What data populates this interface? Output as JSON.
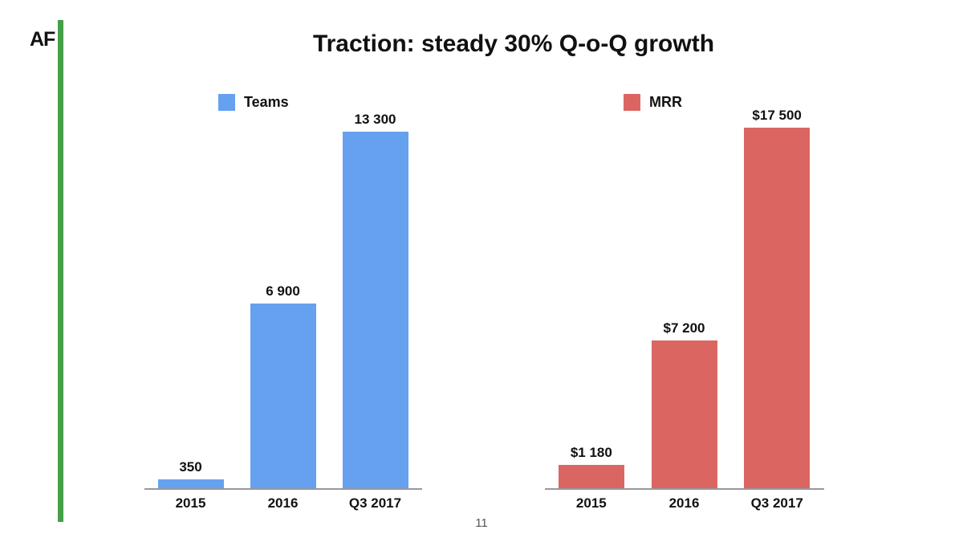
{
  "slide": {
    "logo": "AF",
    "title": "Traction: steady 30% Q-o-Q growth",
    "page_number": "11"
  },
  "colors": {
    "accent_green": "#45a049",
    "teams_blue": "#66a1f0",
    "mrr_red": "#db6661",
    "axis_line": "#999999",
    "text": "#111111",
    "page_number_gray": "#555555"
  },
  "chart_data": [
    {
      "type": "bar",
      "name": "teams",
      "legend": "Teams",
      "legend_position": "top-left",
      "color": "#66a1f0",
      "categories": [
        "2015",
        "2016",
        "Q3 2017"
      ],
      "values": [
        350,
        6900,
        13300
      ],
      "value_labels": [
        "350",
        "6 900",
        "13 300"
      ],
      "ylim": [
        0,
        13300
      ],
      "grid": false,
      "yaxis_visible": false
    },
    {
      "type": "bar",
      "name": "mrr",
      "legend": "MRR",
      "legend_position": "top-left",
      "color": "#db6661",
      "categories": [
        "2015",
        "2016",
        "Q3 2017"
      ],
      "values": [
        1180,
        7200,
        17500
      ],
      "value_labels": [
        "$1 180",
        "$7 200",
        "$17 500"
      ],
      "ylim": [
        0,
        17500
      ],
      "grid": false,
      "yaxis_visible": false
    }
  ]
}
